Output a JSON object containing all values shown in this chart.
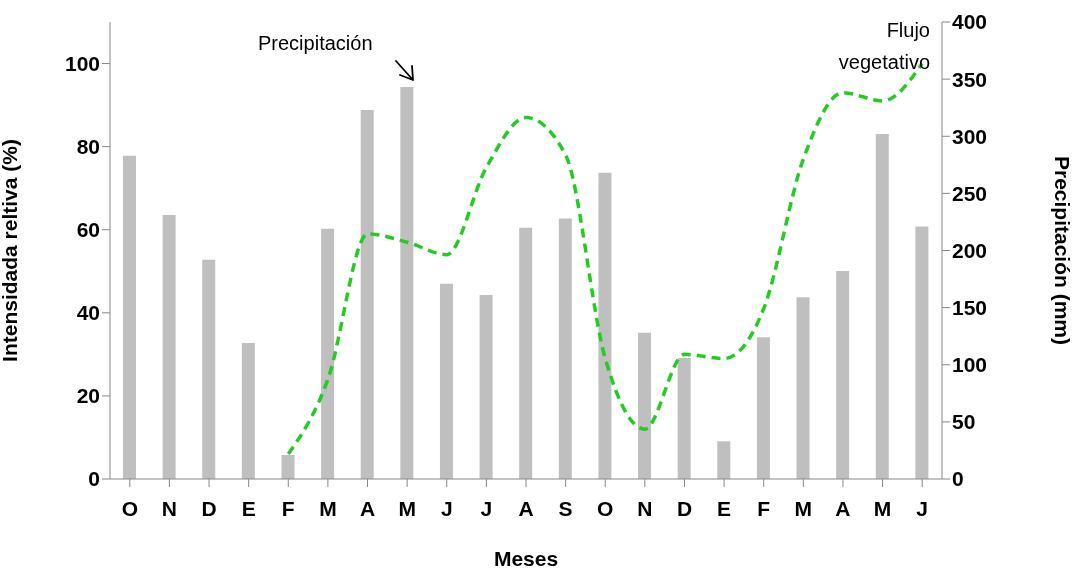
{
  "chart_data": {
    "type": "bar",
    "xlabel": "Meses",
    "ylabel": "Intensidada reltiva (%)",
    "y2label": "Precipitación (mm)",
    "categories": [
      "O",
      "N",
      "D",
      "E",
      "F",
      "M",
      "A",
      "M",
      "J",
      "J",
      "A",
      "S",
      "O",
      "N",
      "D",
      "E",
      "F",
      "M",
      "A",
      "M",
      "J"
    ],
    "series": [
      {
        "axis": "y2",
        "color": "#bfbfbf",
        "values": [
          283,
          231,
          192,
          119,
          21,
          219,
          323,
          343,
          171,
          161,
          220,
          228,
          268,
          128,
          106,
          33,
          124,
          159,
          182,
          302,
          221
        ]
      },
      {
        "type": "line",
        "axis": "y",
        "color": "#22cc22",
        "line_style": "dashed",
        "values": [
          null,
          null,
          null,
          null,
          6,
          24,
          59,
          57,
          54,
          75,
          87,
          78,
          29,
          12,
          30,
          29,
          41,
          77,
          93,
          91,
          100
        ]
      }
    ],
    "ylim": [
      0,
      110
    ],
    "yticks": [
      0,
      20,
      40,
      60,
      80,
      100
    ],
    "y2lim": [
      0,
      400
    ],
    "y2ticks": [
      0,
      50,
      100,
      150,
      200,
      250,
      300,
      350,
      400
    ],
    "marker": "none",
    "annotations": [
      "Precipitación",
      "Flujo vegetativo"
    ]
  }
}
